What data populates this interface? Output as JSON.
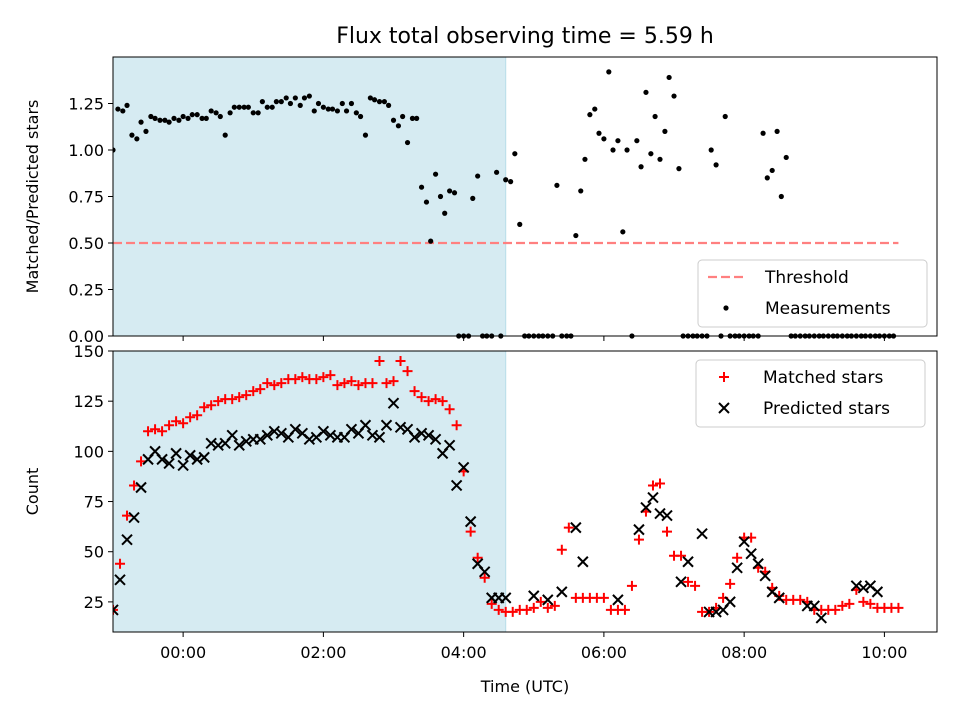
{
  "chart_data": [
    {
      "type": "scatter",
      "title": "Flux total observing time = 5.59 h",
      "xlabel": "",
      "ylabel": "Matched/Predicted stars",
      "xlim": [
        -1.0,
        10.75
      ],
      "ylim": [
        0.0,
        1.5
      ],
      "yticks": [
        0.0,
        0.25,
        0.5,
        0.75,
        1.0,
        1.25
      ],
      "ytick_labels": [
        "0.00",
        "0.25",
        "0.50",
        "0.75",
        "1.00",
        "1.25"
      ],
      "shaded_span": [
        -1.0,
        4.6
      ],
      "threshold": {
        "name": "Threshold",
        "y": 0.5,
        "x_range": [
          -1.0,
          10.2
        ],
        "color": "#ff8080"
      },
      "legend": {
        "placement": "lower-right",
        "entries": [
          "Threshold",
          "Measurements"
        ]
      },
      "series": [
        {
          "name": "Measurements",
          "color": "#000000",
          "marker": "dot",
          "x": [
            -1.0,
            -0.93,
            -0.86,
            -0.8,
            -0.73,
            -0.66,
            -0.6,
            -0.53,
            -0.46,
            -0.4,
            -0.33,
            -0.26,
            -0.2,
            -0.13,
            -0.06,
            0.0,
            0.07,
            0.13,
            0.2,
            0.27,
            0.33,
            0.4,
            0.47,
            0.53,
            0.6,
            0.67,
            0.73,
            0.8,
            0.87,
            0.93,
            1.0,
            1.07,
            1.13,
            1.2,
            1.27,
            1.33,
            1.4,
            1.47,
            1.53,
            1.6,
            1.67,
            1.73,
            1.8,
            1.87,
            1.93,
            2.0,
            2.07,
            2.13,
            2.2,
            2.27,
            2.33,
            2.4,
            2.47,
            2.53,
            2.6,
            2.67,
            2.73,
            2.8,
            2.87,
            2.93,
            3.0,
            3.07,
            3.13,
            3.2,
            3.27,
            3.33,
            3.4,
            3.47,
            3.53,
            3.6,
            3.67,
            3.73,
            3.8,
            3.87,
            3.93,
            4.0,
            4.07,
            4.13,
            4.2,
            4.27,
            4.33,
            4.4,
            4.47,
            4.53,
            4.6,
            4.67,
            4.73,
            4.8,
            4.87,
            4.93,
            5.0,
            5.07,
            5.13,
            5.2,
            5.27,
            5.33,
            5.4,
            5.47,
            5.53,
            5.6,
            5.67,
            5.73,
            5.8,
            5.87,
            5.93,
            6.0,
            6.07,
            6.13,
            6.2,
            6.27,
            6.33,
            6.4,
            6.47,
            6.53,
            6.6,
            6.67,
            6.73,
            6.8,
            6.87,
            6.93,
            7.0,
            7.07,
            7.13,
            7.2,
            7.27,
            7.33,
            7.4,
            7.47,
            7.53,
            7.6,
            7.67,
            7.73,
            7.8,
            7.87,
            7.93,
            8.0,
            8.07,
            8.13,
            8.2,
            8.27,
            8.33,
            8.4,
            8.47,
            8.53,
            8.6,
            8.67,
            8.73,
            8.8,
            8.87,
            8.93,
            9.0,
            9.07,
            9.13,
            9.2,
            9.27,
            9.33,
            9.4,
            9.47,
            9.53,
            9.6,
            9.67,
            9.73,
            9.8,
            9.87,
            9.93,
            10.0,
            10.07,
            10.13
          ],
          "y": [
            1.0,
            1.22,
            1.21,
            1.24,
            1.08,
            1.06,
            1.15,
            1.1,
            1.18,
            1.17,
            1.16,
            1.16,
            1.15,
            1.17,
            1.16,
            1.18,
            1.17,
            1.19,
            1.19,
            1.17,
            1.17,
            1.21,
            1.2,
            1.18,
            1.08,
            1.2,
            1.23,
            1.23,
            1.23,
            1.23,
            1.2,
            1.2,
            1.26,
            1.23,
            1.23,
            1.26,
            1.26,
            1.28,
            1.25,
            1.28,
            1.24,
            1.28,
            1.29,
            1.21,
            1.25,
            1.23,
            1.22,
            1.22,
            1.21,
            1.25,
            1.21,
            1.25,
            1.2,
            1.18,
            1.08,
            1.28,
            1.27,
            1.26,
            1.26,
            1.24,
            1.16,
            1.13,
            1.18,
            1.04,
            1.17,
            1.17,
            0.8,
            0.72,
            0.51,
            0.87,
            0.75,
            0.66,
            0.78,
            0.77,
            0.0,
            0.0,
            0.0,
            0.74,
            0.86,
            0.0,
            0.0,
            0.0,
            0.88,
            0.0,
            0.84,
            0.83,
            0.98,
            0.6,
            0.0,
            0.0,
            0.0,
            0.0,
            0.0,
            0.0,
            0.0,
            0.81,
            0.0,
            0.0,
            0.0,
            0.54,
            0.78,
            0.95,
            1.19,
            1.22,
            1.09,
            1.06,
            1.42,
            1.0,
            1.05,
            0.56,
            1.0,
            0.0,
            1.05,
            0.91,
            1.31,
            0.98,
            1.18,
            0.95,
            1.1,
            1.39,
            1.29,
            0.9,
            0.0,
            0.0,
            0.0,
            0.0,
            0.0,
            0.0,
            1.0,
            0.92,
            0.0,
            1.18,
            0.0,
            0.0,
            0.0,
            0.0,
            0.0,
            0.0,
            0.0,
            1.09,
            0.85,
            0.89,
            1.1,
            0.75,
            0.96,
            0.0,
            0.0,
            0.0,
            0.0,
            0.0,
            0.0,
            0.0,
            0.0,
            0.0,
            0.0,
            0.0,
            0.0,
            0.0,
            0.0,
            0.0,
            0.0,
            0.0,
            0.0,
            0.0,
            0.0,
            0.0,
            0.0,
            0.0
          ]
        }
      ]
    },
    {
      "type": "scatter",
      "title": "",
      "xlabel": "Time (UTC)",
      "ylabel": "Count",
      "xlim": [
        -1.0,
        10.75
      ],
      "ylim": [
        10,
        150
      ],
      "xticks": [
        0,
        2,
        4,
        6,
        8,
        10
      ],
      "xtick_labels": [
        "00:00",
        "02:00",
        "04:00",
        "06:00",
        "08:00",
        "10:00"
      ],
      "yticks": [
        25,
        50,
        75,
        100,
        125,
        150
      ],
      "ytick_labels": [
        "25",
        "50",
        "75",
        "100",
        "125",
        "150"
      ],
      "shaded_span": [
        -1.0,
        4.6
      ],
      "legend": {
        "placement": "top-right",
        "entries": [
          "Matched stars",
          "Predicted stars"
        ]
      },
      "series": [
        {
          "name": "Matched stars",
          "color": "#ff0000",
          "marker": "plus",
          "x": [
            -1.0,
            -0.9,
            -0.8,
            -0.7,
            -0.6,
            -0.5,
            -0.4,
            -0.3,
            -0.2,
            -0.1,
            0.0,
            0.1,
            0.2,
            0.3,
            0.4,
            0.5,
            0.6,
            0.7,
            0.8,
            0.9,
            1.0,
            1.1,
            1.2,
            1.3,
            1.4,
            1.5,
            1.6,
            1.7,
            1.8,
            1.9,
            2.0,
            2.1,
            2.2,
            2.3,
            2.4,
            2.5,
            2.6,
            2.7,
            2.8,
            2.9,
            3.0,
            3.1,
            3.2,
            3.3,
            3.4,
            3.5,
            3.6,
            3.7,
            3.8,
            3.9,
            4.0,
            4.1,
            4.2,
            4.3,
            4.4,
            4.5,
            4.6,
            4.7,
            4.8,
            4.9,
            5.0,
            5.1,
            5.2,
            5.3,
            5.4,
            5.5,
            5.6,
            5.7,
            5.8,
            5.9,
            6.0,
            6.1,
            6.2,
            6.3,
            6.4,
            6.5,
            6.6,
            6.7,
            6.8,
            6.9,
            7.0,
            7.1,
            7.2,
            7.3,
            7.4,
            7.5,
            7.6,
            7.7,
            7.8,
            7.9,
            8.0,
            8.1,
            8.2,
            8.3,
            8.4,
            8.5,
            8.6,
            8.7,
            8.8,
            8.9,
            9.0,
            9.1,
            9.2,
            9.3,
            9.4,
            9.5,
            9.6,
            9.7,
            9.8,
            9.9,
            10.0,
            10.1,
            10.2
          ],
          "y": [
            21,
            44,
            68,
            83,
            95,
            110,
            111,
            110,
            113,
            115,
            114,
            117,
            118,
            122,
            123,
            125,
            126,
            126,
            127,
            128,
            130,
            131,
            134,
            133,
            134,
            136,
            136,
            137,
            136,
            136,
            137,
            138,
            133,
            134,
            135,
            133,
            134,
            134,
            145,
            134,
            135,
            145,
            140,
            130,
            127,
            125,
            126,
            125,
            121,
            113,
            90,
            60,
            47,
            37,
            24,
            21,
            20,
            20,
            21,
            21,
            22,
            25,
            22,
            23,
            51,
            62,
            27,
            27,
            27,
            27,
            27,
            21,
            21,
            21,
            33,
            56,
            70,
            83,
            84,
            60,
            48,
            48,
            35,
            33,
            20,
            20,
            22,
            27,
            34,
            47,
            57,
            57,
            42,
            40,
            32,
            28,
            26,
            26,
            26,
            25,
            21,
            21,
            21,
            21,
            23,
            24,
            31,
            25,
            24,
            22,
            22,
            22,
            22
          ]
        },
        {
          "name": "Predicted stars",
          "color": "#000000",
          "marker": "x",
          "x": [
            -1.0,
            -0.9,
            -0.8,
            -0.7,
            -0.6,
            -0.5,
            -0.4,
            -0.3,
            -0.2,
            -0.1,
            0.0,
            0.1,
            0.2,
            0.3,
            0.4,
            0.5,
            0.6,
            0.7,
            0.8,
            0.9,
            1.0,
            1.1,
            1.2,
            1.3,
            1.4,
            1.5,
            1.6,
            1.7,
            1.8,
            1.9,
            2.0,
            2.1,
            2.2,
            2.3,
            2.4,
            2.5,
            2.6,
            2.7,
            2.8,
            2.9,
            3.0,
            3.1,
            3.2,
            3.3,
            3.4,
            3.5,
            3.6,
            3.7,
            3.8,
            3.9,
            4.0,
            4.1,
            4.2,
            4.3,
            4.4,
            4.5,
            4.6,
            5.0,
            5.2,
            5.4,
            5.6,
            5.7,
            6.2,
            6.5,
            6.6,
            6.7,
            6.8,
            6.9,
            7.1,
            7.2,
            7.4,
            7.5,
            7.6,
            7.7,
            7.8,
            7.9,
            8.0,
            8.1,
            8.2,
            8.3,
            8.4,
            8.5,
            8.9,
            9.0,
            9.1,
            9.6,
            9.7,
            9.8,
            9.9
          ],
          "y": [
            21,
            36,
            56,
            67,
            82,
            96,
            100,
            96,
            94,
            99,
            93,
            98,
            96,
            97,
            104,
            103,
            104,
            108,
            103,
            105,
            106,
            106,
            108,
            110,
            109,
            107,
            111,
            109,
            106,
            107,
            110,
            108,
            107,
            107,
            111,
            109,
            113,
            108,
            107,
            113,
            124,
            112,
            111,
            107,
            109,
            108,
            106,
            99,
            103,
            83,
            92,
            65,
            44,
            40,
            27,
            27,
            27,
            28,
            26,
            30,
            62,
            45,
            26,
            61,
            72,
            77,
            69,
            68,
            35,
            45,
            59,
            20,
            20,
            21,
            25,
            42,
            55,
            49,
            44,
            38,
            30,
            27,
            23,
            23,
            17,
            33,
            32,
            33,
            30
          ]
        }
      ]
    }
  ]
}
